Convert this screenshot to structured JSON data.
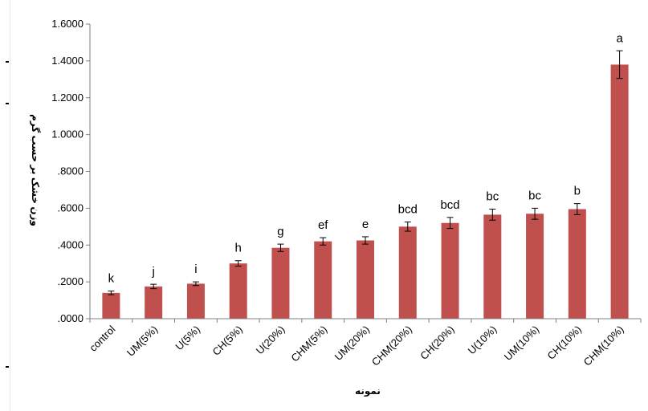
{
  "colors": {
    "bar": "#c0504d",
    "axis": "#7f7f7f",
    "text": "#000000"
  },
  "chart_data": {
    "type": "bar",
    "xlabel": "نمونه",
    "ylabel": "وزن خشک بر حسب گرم",
    "ylim": [
      0,
      1.6
    ],
    "yticks": [
      0,
      0.2,
      0.4,
      0.6,
      0.8,
      1.0,
      1.2,
      1.4,
      1.6
    ],
    "ytick_labels": [
      ".0000",
      ".2000",
      ".4000",
      ".6000",
      ".8000",
      "1.0000",
      "1.2000",
      "1.4000",
      "1.6000"
    ],
    "grid": false,
    "legend": "none",
    "categories": [
      "control",
      "UM(5%)",
      "U(5%)",
      "CH(5%)",
      "U(20%)",
      "CHM(5%)",
      "UM(20%)",
      "CHM(20%)",
      "CH(20%)",
      "U(10%)",
      "UM(10%)",
      "CH(10%)",
      "CHM(10%)"
    ],
    "values": [
      0.14,
      0.175,
      0.19,
      0.3,
      0.385,
      0.42,
      0.425,
      0.5,
      0.52,
      0.565,
      0.57,
      0.595,
      1.38
    ],
    "errors": [
      0.01,
      0.012,
      0.01,
      0.015,
      0.02,
      0.02,
      0.02,
      0.025,
      0.03,
      0.03,
      0.03,
      0.03,
      0.075
    ],
    "annotations": [
      "k",
      "j",
      "i",
      "h",
      "g",
      "ef",
      "e",
      "bcd",
      "bcd",
      "bc",
      "bc",
      "b",
      "a"
    ]
  }
}
